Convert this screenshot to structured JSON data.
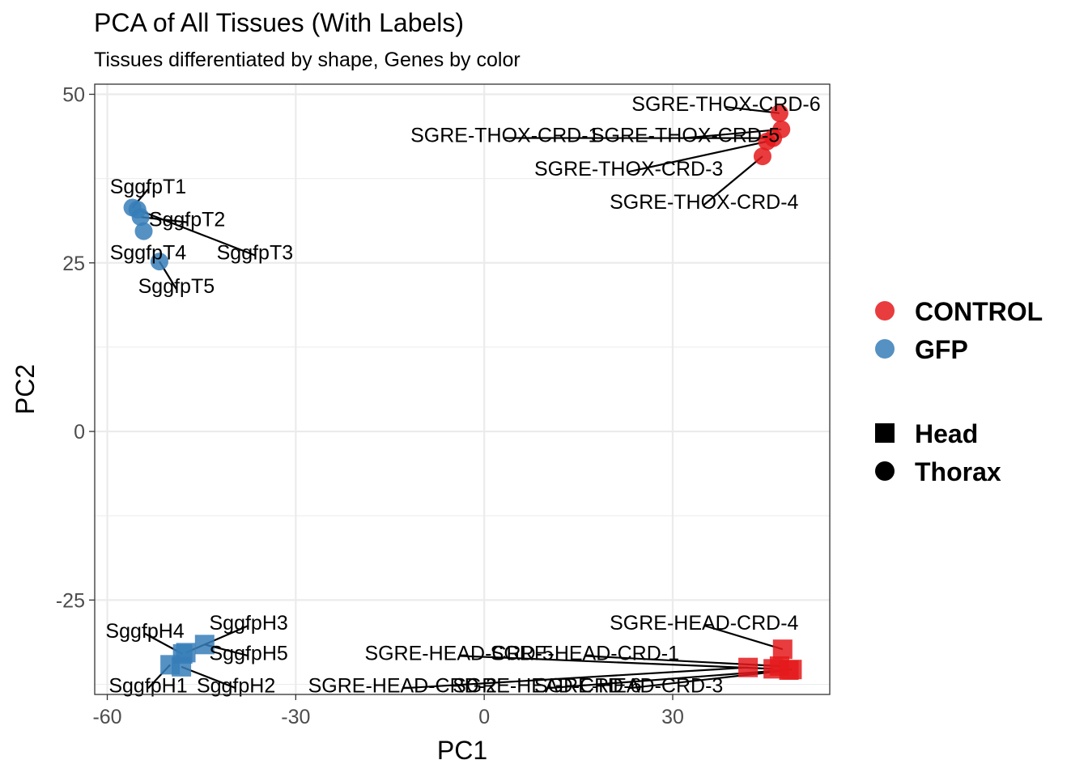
{
  "chart_data": {
    "type": "scatter",
    "title": "PCA of All Tissues (With Labels)",
    "subtitle": "Tissues differentiated by shape, Genes by color",
    "xlabel": "PC1",
    "ylabel": "PC2",
    "xlim": [
      -62,
      55
    ],
    "ylim": [
      -39,
      51.5
    ],
    "x_ticks": [
      -60,
      -30,
      0,
      30
    ],
    "y_ticks": [
      50,
      25,
      0,
      -25
    ],
    "x_tick_labels": [
      "-60",
      "-30",
      "0",
      "30"
    ],
    "y_tick_labels": [
      "50",
      "25",
      "0",
      "-25"
    ],
    "grid": true,
    "legend_position": "right",
    "colors": {
      "CONTROL": "#e41a1c",
      "GFP": "#377eb8"
    },
    "color_legend": [
      "CONTROL",
      "GFP"
    ],
    "shape_legend": [
      {
        "label": "Head",
        "shape": "square"
      },
      {
        "label": "Thorax",
        "shape": "circle"
      }
    ],
    "points": [
      {
        "label": "SGRE-THOX-CRD-6",
        "x": 47.0,
        "y": 47.2,
        "group": "CONTROL",
        "tissue": "Thorax",
        "lx": 38.5,
        "ly": 48.6,
        "anchor": "middle"
      },
      {
        "label": "SGRE-THOX-CRD-5",
        "x": 47.3,
        "y": 44.8,
        "group": "CONTROL",
        "tissue": "Thorax",
        "lx": 32.0,
        "ly": 44.0,
        "anchor": "middle"
      },
      {
        "label": "SGRE-THOX-CRD-1",
        "x": 46.0,
        "y": 43.5,
        "group": "CONTROL",
        "tissue": "Thorax",
        "lx": 3.3,
        "ly": 44.0,
        "anchor": "middle"
      },
      {
        "label": "SGRE-THOX-CRD-3",
        "x": 45.0,
        "y": 43.0,
        "group": "CONTROL",
        "tissue": "Thorax",
        "lx": 23.0,
        "ly": 39.0,
        "anchor": "middle"
      },
      {
        "label": "SGRE-THOX-CRD-4",
        "x": 44.3,
        "y": 40.8,
        "group": "CONTROL",
        "tissue": "Thorax",
        "lx": 35.0,
        "ly": 34.1,
        "anchor": "middle"
      },
      {
        "label": "SggfpT1",
        "x": -56.0,
        "y": 33.2,
        "group": "GFP",
        "tissue": "Thorax",
        "lx": -53.5,
        "ly": 36.4,
        "anchor": "middle"
      },
      {
        "label": "SggfpT2",
        "x": -54.7,
        "y": 31.8,
        "group": "GFP",
        "tissue": "Thorax",
        "lx": -47.3,
        "ly": 31.5,
        "anchor": "middle"
      },
      {
        "label": "SggfpT3",
        "x": -55.2,
        "y": 32.9,
        "group": "GFP",
        "tissue": "Thorax",
        "lx": -36.5,
        "ly": 26.6,
        "anchor": "middle"
      },
      {
        "label": "SggfpT4",
        "x": -54.2,
        "y": 29.7,
        "group": "GFP",
        "tissue": "Thorax",
        "lx": -53.5,
        "ly": 26.6,
        "anchor": "middle"
      },
      {
        "label": "SggfpT5",
        "x": -51.7,
        "y": 25.2,
        "group": "GFP",
        "tissue": "Thorax",
        "lx": -49.0,
        "ly": 21.6,
        "anchor": "middle"
      },
      {
        "label": "SGRE-HEAD-CRD-4",
        "x": 47.5,
        "y": -32.3,
        "group": "CONTROL",
        "tissue": "Head",
        "lx": 35.0,
        "ly": -28.3,
        "anchor": "middle"
      },
      {
        "label": "SGRE-HEAD-CRD-1",
        "x": 47.0,
        "y": -34.8,
        "group": "CONTROL",
        "tissue": "Head",
        "lx": 16.0,
        "ly": -32.8,
        "anchor": "middle"
      },
      {
        "label": "SGRE-HEAD-CRD-5",
        "x": 46.0,
        "y": -35.2,
        "group": "CONTROL",
        "tissue": "Head",
        "lx": -4.0,
        "ly": -32.8,
        "anchor": "middle"
      },
      {
        "label": "SGRE-HEAD-CRD-2",
        "x": 42.0,
        "y": -35.0,
        "group": "CONTROL",
        "tissue": "Head",
        "lx": -13.0,
        "ly": -37.6,
        "anchor": "middle"
      },
      {
        "label": "SGRE-HEAD-CRD-6",
        "x": 49.0,
        "y": -35.3,
        "group": "CONTROL",
        "tissue": "Head",
        "lx": 10.0,
        "ly": -37.6,
        "anchor": "middle"
      },
      {
        "label": "SGRE-HEAD-CRD-3",
        "x": 48.5,
        "y": -35.4,
        "group": "CONTROL",
        "tissue": "Head",
        "lx": 23.0,
        "ly": -37.6,
        "anchor": "middle"
      },
      {
        "label": "SggfpH1",
        "x": -50.0,
        "y": -34.6,
        "group": "GFP",
        "tissue": "Head",
        "lx": -53.5,
        "ly": -37.6,
        "anchor": "middle"
      },
      {
        "label": "SggfpH2",
        "x": -48.2,
        "y": -34.9,
        "group": "GFP",
        "tissue": "Head",
        "lx": -39.5,
        "ly": -37.6,
        "anchor": "middle"
      },
      {
        "label": "SggfpH3",
        "x": -47.5,
        "y": -32.8,
        "group": "GFP",
        "tissue": "Head",
        "lx": -37.5,
        "ly": -28.3,
        "anchor": "middle"
      },
      {
        "label": "SggfpH4",
        "x": -48.0,
        "y": -33.0,
        "group": "GFP",
        "tissue": "Head",
        "lx": -54.0,
        "ly": -29.5,
        "anchor": "middle"
      },
      {
        "label": "SggfpH5",
        "x": -44.5,
        "y": -31.6,
        "group": "GFP",
        "tissue": "Head",
        "lx": -37.5,
        "ly": -32.8,
        "anchor": "middle"
      }
    ]
  }
}
